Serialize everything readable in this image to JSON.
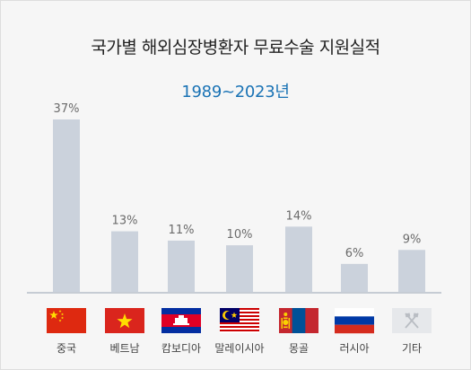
{
  "title": "국가별 해외심장병환자 무료수술 지원실적",
  "subtitle": "1989~2023년",
  "chart_data": {
    "type": "bar",
    "title": "국가별 해외심장병환자 무료수술 지원실적",
    "subtitle": "1989~2023년",
    "categories": [
      "중국",
      "베트남",
      "캄보디아",
      "말레이시아",
      "몽골",
      "러시아",
      "기타"
    ],
    "values": [
      37,
      13,
      11,
      10,
      14,
      6,
      9
    ],
    "value_labels": [
      "37%",
      "13%",
      "11%",
      "10%",
      "14%",
      "6%",
      "9%"
    ],
    "unit": "%",
    "ylim": [
      0,
      40
    ],
    "grid": false,
    "bar_color": "#cbd2dc",
    "flags": [
      "china-flag-icon",
      "vietnam-flag-icon",
      "cambodia-flag-icon",
      "malaysia-flag-icon",
      "mongolia-flag-icon",
      "russia-flag-icon",
      "other-flag-icon"
    ]
  }
}
